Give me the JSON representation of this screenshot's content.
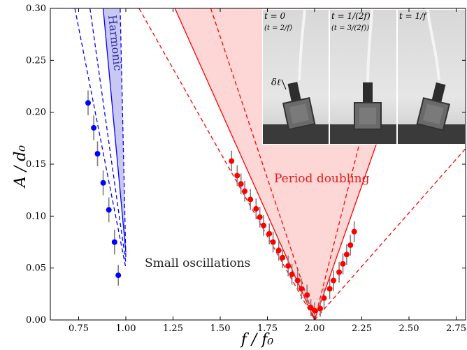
{
  "chart_data": {
    "type": "scatter",
    "xlabel": "f / f₀",
    "ylabel": "A / d₀",
    "xlim": [
      0.6,
      2.8
    ],
    "ylim": [
      0.0,
      0.3
    ],
    "x_ticks": [
      "0.75",
      "1.00",
      "1.25",
      "1.50",
      "1.75",
      "2.00",
      "2.25",
      "2.50",
      "2.75"
    ],
    "x_tick_values": [
      0.75,
      1.0,
      1.25,
      1.5,
      1.75,
      2.0,
      2.25,
      2.5,
      2.75
    ],
    "y_ticks": [
      "0.00",
      "0.05",
      "0.10",
      "0.15",
      "0.20",
      "0.25",
      "0.30"
    ],
    "y_tick_values": [
      0.0,
      0.05,
      0.1,
      0.15,
      0.2,
      0.25,
      0.3
    ],
    "grid": false,
    "colors": {
      "harmonic": "#0000ff",
      "harmonic_fill": "#c8c8f2",
      "period_doubling": "#ff0000",
      "period_doubling_fill": "#fdd6d6",
      "error_bar": "#808080"
    },
    "annotations": {
      "harmonic": "Harmonic",
      "period_doubling": "Period doubling",
      "small_oscillations": "Small oscillations"
    },
    "series": [
      {
        "points": [
          {
            "x": 0.8,
            "y": 0.209,
            "err": 0.012
          },
          {
            "x": 0.83,
            "y": 0.185,
            "err": 0.012
          },
          {
            "x": 0.85,
            "y": 0.16,
            "err": 0.012
          },
          {
            "x": 0.88,
            "y": 0.132,
            "err": 0.012
          },
          {
            "x": 0.91,
            "y": 0.106,
            "err": 0.012
          },
          {
            "x": 0.94,
            "y": 0.075,
            "err": 0.012
          },
          {
            "x": 0.96,
            "y": 0.043,
            "err": 0.01
          }
        ]
      },
      {
        "points": [
          {
            "x": 1.56,
            "y": 0.153,
            "err": 0.01
          },
          {
            "x": 1.59,
            "y": 0.139,
            "err": 0.01
          },
          {
            "x": 1.61,
            "y": 0.131,
            "err": 0.01
          },
          {
            "x": 1.63,
            "y": 0.124,
            "err": 0.01
          },
          {
            "x": 1.66,
            "y": 0.116,
            "err": 0.01
          },
          {
            "x": 1.69,
            "y": 0.107,
            "err": 0.01
          },
          {
            "x": 1.71,
            "y": 0.099,
            "err": 0.01
          },
          {
            "x": 1.73,
            "y": 0.091,
            "err": 0.01
          },
          {
            "x": 1.76,
            "y": 0.083,
            "err": 0.01
          },
          {
            "x": 1.78,
            "y": 0.075,
            "err": 0.01
          },
          {
            "x": 1.81,
            "y": 0.067,
            "err": 0.01
          },
          {
            "x": 1.83,
            "y": 0.06,
            "err": 0.01
          },
          {
            "x": 1.86,
            "y": 0.052,
            "err": 0.01
          },
          {
            "x": 1.88,
            "y": 0.044,
            "err": 0.01
          },
          {
            "x": 1.91,
            "y": 0.038,
            "err": 0.01
          },
          {
            "x": 1.93,
            "y": 0.03,
            "err": 0.01
          },
          {
            "x": 1.96,
            "y": 0.024,
            "err": 0.01
          },
          {
            "x": 1.98,
            "y": 0.012,
            "err": 0.008
          },
          {
            "x": 2.0,
            "y": 0.009,
            "err": 0.008
          },
          {
            "x": 2.03,
            "y": 0.011,
            "err": 0.008
          },
          {
            "x": 2.05,
            "y": 0.021,
            "err": 0.01
          },
          {
            "x": 2.08,
            "y": 0.03,
            "err": 0.01
          },
          {
            "x": 2.1,
            "y": 0.038,
            "err": 0.01
          },
          {
            "x": 2.13,
            "y": 0.046,
            "err": 0.01
          },
          {
            "x": 2.15,
            "y": 0.054,
            "err": 0.01
          },
          {
            "x": 2.17,
            "y": 0.063,
            "err": 0.01
          },
          {
            "x": 2.19,
            "y": 0.072,
            "err": 0.01
          },
          {
            "x": 2.21,
            "y": 0.085,
            "err": 0.01
          }
        ]
      }
    ],
    "regions": {
      "harmonic_fill": [
        [
          0.88,
          0.3
        ],
        [
          0.97,
          0.3
        ],
        [
          1.0,
          0.065
        ]
      ],
      "period_doubling_fill": [
        [
          1.26,
          0.3
        ],
        [
          2.58,
          0.3
        ],
        [
          2.0,
          0.0
        ]
      ],
      "harmonic_dashed_lines": [
        [
          [
            0.73,
            0.3
          ],
          [
            1.0,
            0.05
          ]
        ],
        [
          [
            0.81,
            0.3
          ],
          [
            1.0,
            0.055
          ]
        ],
        [
          [
            0.97,
            0.3
          ],
          [
            1.0,
            0.06
          ]
        ]
      ],
      "harmonic_solid_lines": [
        [
          [
            0.88,
            0.3
          ],
          [
            1.0,
            0.065
          ]
        ]
      ],
      "period_doubling_solid_lines": [
        [
          [
            1.26,
            0.3
          ],
          [
            2.0,
            0.0
          ]
        ],
        [
          [
            2.0,
            0.0
          ],
          [
            2.58,
            0.3
          ]
        ]
      ],
      "period_doubling_dashed_lines": [
        [
          [
            1.07,
            0.3
          ],
          [
            2.0,
            0.0
          ]
        ],
        [
          [
            2.0,
            0.0
          ],
          [
            2.8,
            0.165
          ]
        ],
        [
          [
            1.45,
            0.3
          ],
          [
            2.0,
            0.0
          ]
        ],
        [
          [
            2.0,
            0.0
          ],
          [
            2.42,
            0.3
          ]
        ]
      ]
    },
    "inset": {
      "panels": [
        {
          "label": "t = 0",
          "sub": "(t = 2/f)"
        },
        {
          "label": "t = 1/(2f)",
          "sub": "(t = 3/(2f))"
        },
        {
          "label": "t = 1/f",
          "sub": ""
        }
      ],
      "delta_label": "δℓ"
    }
  }
}
